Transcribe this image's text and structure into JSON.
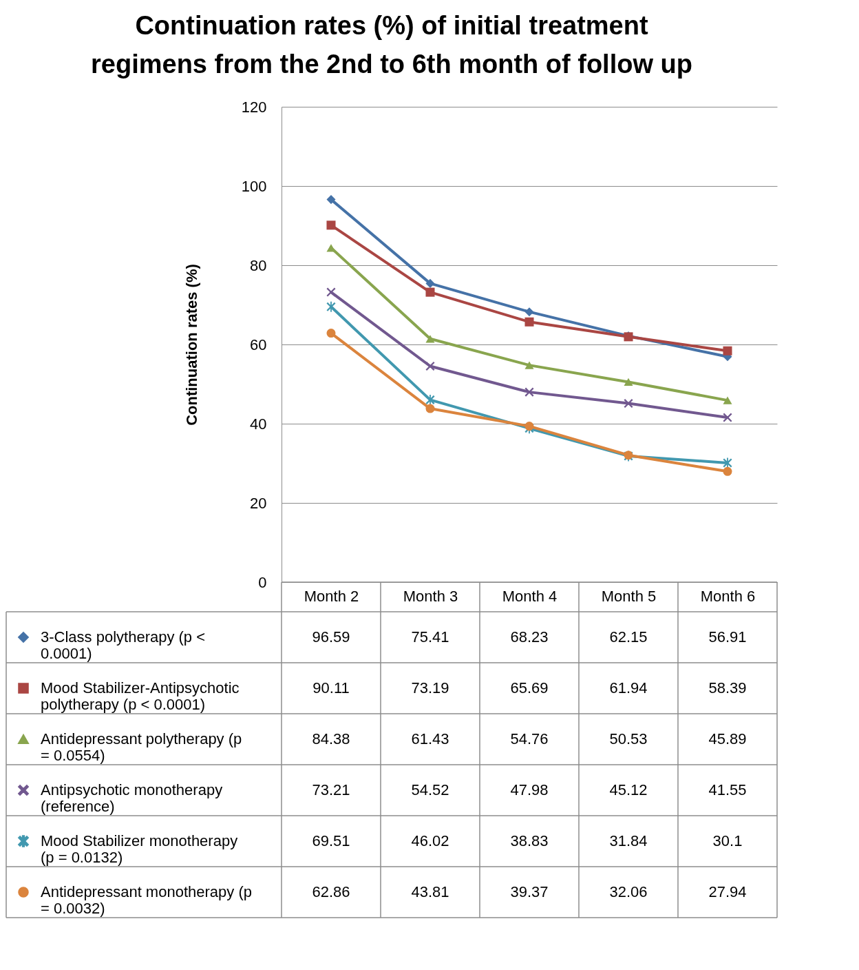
{
  "chart_data": {
    "type": "line",
    "title": "Continuation rates (%) of initial treatment regimens from the 2nd to 6th month of follow up",
    "ylabel": "Continuation rates (%)",
    "categories": [
      "Month 2",
      "Month 3",
      "Month 4",
      "Month 5",
      "Month 6"
    ],
    "ylim": [
      0,
      120
    ],
    "yticks": [
      0,
      20,
      40,
      60,
      80,
      100,
      120
    ],
    "grid": "y",
    "legend": "bottom",
    "data_labels": true,
    "series": [
      {
        "name": "3-Class polytherapy (p < 0.0001)",
        "color": "#4572a7",
        "marker": "diamond",
        "values": [
          96.59,
          75.41,
          68.23,
          62.15,
          56.91
        ]
      },
      {
        "name": "Mood Stabilizer-Antipsychotic polytherapy (p < 0.0001)",
        "color": "#aa4643",
        "marker": "square",
        "values": [
          90.11,
          73.19,
          65.69,
          61.94,
          58.39
        ]
      },
      {
        "name": "Antidepressant polytherapy (p = 0.0554)",
        "color": "#89a54e",
        "marker": "triangle",
        "values": [
          84.38,
          61.43,
          54.76,
          50.53,
          45.89
        ]
      },
      {
        "name": "Antipsychotic monotherapy (reference)",
        "color": "#71588f",
        "marker": "cross",
        "values": [
          73.21,
          54.52,
          47.98,
          45.12,
          41.55
        ]
      },
      {
        "name": "Mood Stabilizer monotherapy (p = 0.0132)",
        "color": "#4198af",
        "marker": "star",
        "values": [
          69.51,
          46.02,
          38.83,
          31.84,
          30.1
        ]
      },
      {
        "name": "Antidepressant monotherapy (p = 0.0032)",
        "color": "#db843d",
        "marker": "circle",
        "values": [
          62.86,
          43.81,
          39.37,
          32.06,
          27.94
        ]
      }
    ]
  }
}
